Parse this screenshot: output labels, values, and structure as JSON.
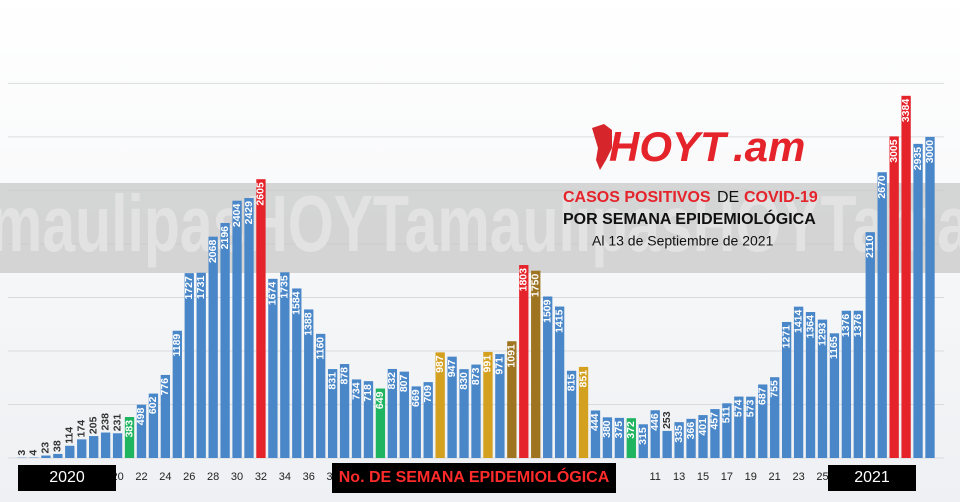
{
  "chart_data": {
    "type": "bar",
    "watermark": "maulipasHOYTamaulipasHOYTama",
    "logo": {
      "brand": "HOYT",
      "suffix": ".am"
    },
    "title_parts": [
      "CASOS POSITIVOS",
      "DE",
      "COVID-19"
    ],
    "subtitle": "POR SEMANA EPIDEMIOLÓGICA",
    "date_note": "Al 13 de Septiembre de 2021",
    "x_label": "No. DE SEMANA EPIDEMIOLÓGICA",
    "year_labels": [
      "2020",
      "2021"
    ],
    "categories": [
      null,
      null,
      null,
      null,
      null,
      null,
      null,
      null,
      "20",
      null,
      "22",
      null,
      "24",
      null,
      "26",
      null,
      "28",
      null,
      "30",
      null,
      "32",
      null,
      "34",
      null,
      "36",
      null,
      "38",
      null,
      null,
      null,
      null,
      null,
      null,
      null,
      null,
      null,
      null,
      null,
      null,
      null,
      null,
      null,
      null,
      null,
      null,
      null,
      null,
      null,
      null,
      null,
      null,
      null,
      null,
      "11",
      null,
      "13",
      null,
      "15",
      null,
      "17",
      null,
      "19",
      null,
      "21",
      null,
      "23",
      null,
      "25",
      null,
      null,
      null,
      null,
      null,
      null,
      null,
      null,
      null
    ],
    "values": [
      3,
      4,
      23,
      38,
      114,
      174,
      205,
      238,
      231,
      383,
      498,
      602,
      776,
      1189,
      1727,
      1731,
      2068,
      2196,
      2404,
      2429,
      2605,
      1674,
      1735,
      1584,
      1388,
      1160,
      831,
      878,
      734,
      718,
      649,
      832,
      807,
      669,
      709,
      987,
      947,
      830,
      873,
      991,
      971,
      1091,
      1803,
      1750,
      1509,
      1415,
      815,
      851,
      444,
      380,
      375,
      372,
      315,
      446,
      253,
      335,
      366,
      401,
      457,
      511,
      574,
      573,
      687,
      755,
      1271,
      1414,
      1364,
      1293,
      1165,
      1376,
      1376,
      2110,
      2670,
      3005,
      3384,
      2935,
      3000
    ],
    "colors": [
      "#4a87c9",
      "#4a87c9",
      "#4a87c9",
      "#4a87c9",
      "#4a87c9",
      "#4a87c9",
      "#4a87c9",
      "#4a87c9",
      "#4a87c9",
      "#1fb45f",
      "#4a87c9",
      "#4a87c9",
      "#4a87c9",
      "#4a87c9",
      "#4a87c9",
      "#4a87c9",
      "#4a87c9",
      "#4a87c9",
      "#4a87c9",
      "#4a87c9",
      "#e4232a",
      "#4a87c9",
      "#4a87c9",
      "#4a87c9",
      "#4a87c9",
      "#4a87c9",
      "#4a87c9",
      "#4a87c9",
      "#4a87c9",
      "#4a87c9",
      "#1fb45f",
      "#4a87c9",
      "#4a87c9",
      "#4a87c9",
      "#4a87c9",
      "#d4a020",
      "#4a87c9",
      "#4a87c9",
      "#4a87c9",
      "#d4a020",
      "#4a87c9",
      "#9e7420",
      "#e4232a",
      "#9e7420",
      "#4a87c9",
      "#4a87c9",
      "#4a87c9",
      "#d4a020",
      "#4a87c9",
      "#4a87c9",
      "#4a87c9",
      "#1fb45f",
      "#4a87c9",
      "#4a87c9",
      "#4a87c9",
      "#4a87c9",
      "#4a87c9",
      "#4a87c9",
      "#4a87c9",
      "#4a87c9",
      "#4a87c9",
      "#4a87c9",
      "#4a87c9",
      "#4a87c9",
      "#4a87c9",
      "#4a87c9",
      "#4a87c9",
      "#4a87c9",
      "#4a87c9",
      "#4a87c9",
      "#4a87c9",
      "#4a87c9",
      "#4a87c9",
      "#e4232a",
      "#e4232a",
      "#4a87c9",
      "#4a87c9"
    ],
    "ylim": [
      0,
      3700
    ],
    "yticks": [
      0,
      500,
      1000,
      1500,
      2000,
      2500,
      3000,
      3500
    ],
    "grid": true
  }
}
